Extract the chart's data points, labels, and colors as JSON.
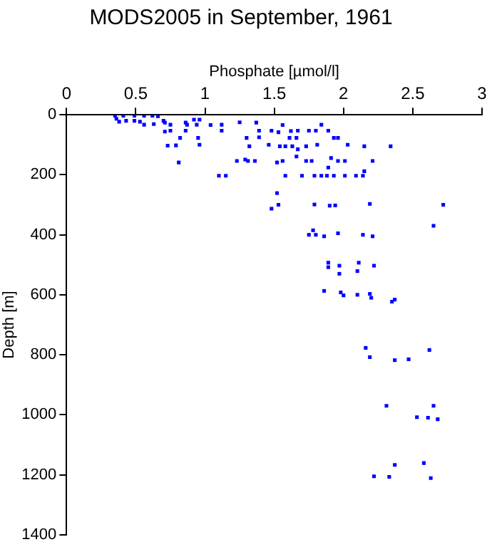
{
  "chart_data": {
    "type": "scatter",
    "title": "MODS2005 in September, 1961",
    "xlabel": "Phosphate [µmol/l]",
    "ylabel": "Depth [m]",
    "xlim": [
      0,
      3
    ],
    "xticks": [
      0,
      0.5,
      1,
      1.5,
      2,
      2.5,
      3
    ],
    "ylim": [
      1400,
      0
    ],
    "yticks": [
      0,
      200,
      400,
      600,
      800,
      1000,
      1200,
      1400
    ],
    "grid": false,
    "marker": "square",
    "series": [
      {
        "color": "#0000ff",
        "x": [
          0.35,
          0.41,
          0.49,
          0.56,
          0.62,
          0.66,
          0.36,
          0.43,
          0.49,
          0.53,
          0.38,
          0.7,
          0.56,
          0.63,
          0.75,
          0.71,
          0.86,
          0.92,
          0.96,
          0.87,
          0.94,
          1.04,
          1.12,
          1.25,
          1.37,
          0.71,
          0.75,
          0.86,
          1.12,
          0.82,
          0.95,
          1.3,
          1.39,
          1.39,
          1.48,
          0.73,
          0.79,
          0.96,
          1.32,
          1.46,
          0.81,
          1.23,
          1.29,
          1.31,
          1.36,
          1.52,
          1.1,
          1.15,
          1.52,
          1.48,
          1.53,
          1.56,
          1.84,
          1.53,
          1.62,
          1.67,
          1.75,
          1.8,
          1.89,
          1.61,
          1.66,
          1.93,
          1.96,
          1.54,
          1.58,
          1.63,
          1.67,
          1.73,
          1.81,
          2.03,
          2.15,
          2.34,
          1.56,
          1.66,
          1.73,
          1.77,
          1.91,
          1.96,
          2.01,
          2.21,
          1.89,
          1.58,
          1.7,
          1.79,
          1.84,
          1.88,
          1.93,
          2.01,
          2.09,
          2.14,
          2.15,
          1.79,
          1.9,
          1.94,
          2.19,
          2.72,
          2.65,
          1.78,
          1.75,
          1.8,
          1.86,
          1.96,
          2.14,
          2.21,
          1.89,
          2.11,
          1.89,
          1.97,
          2.22,
          2.1,
          1.97,
          1.86,
          1.98,
          2.0,
          2.1,
          2.19,
          2.2,
          2.37,
          2.35,
          2.16,
          2.19,
          2.37,
          2.47,
          2.62,
          2.31,
          2.65,
          2.53,
          2.61,
          2.68,
          2.37,
          2.58,
          2.22,
          2.33,
          2.63
        ],
        "values": [
          3,
          3,
          3,
          3,
          3,
          5,
          13,
          20,
          20,
          23,
          23,
          20,
          33,
          31,
          33,
          26,
          26,
          16,
          16,
          33,
          33,
          34,
          33,
          25,
          26,
          56,
          53,
          53,
          53,
          77,
          77,
          77,
          75,
          53,
          53,
          103,
          102,
          100,
          105,
          100,
          159,
          154,
          149,
          154,
          154,
          159,
          203,
          203,
          261,
          313,
          300,
          34,
          33,
          58,
          54,
          53,
          53,
          53,
          53,
          77,
          77,
          77,
          77,
          105,
          105,
          105,
          115,
          105,
          100,
          100,
          105,
          105,
          154,
          139,
          154,
          154,
          144,
          154,
          154,
          154,
          176,
          203,
          203,
          203,
          203,
          203,
          203,
          203,
          203,
          203,
          188,
          299,
          303,
          302,
          297,
          300,
          370,
          385,
          400,
          400,
          405,
          395,
          400,
          405,
          493,
          493,
          508,
          503,
          503,
          521,
          530,
          587,
          592,
          602,
          600,
          597,
          610,
          616,
          623,
          777,
          808,
          818,
          815,
          784,
          970,
          970,
          1008,
          1010,
          1015,
          1167,
          1161,
          1205,
          1207,
          1211
        ]
      }
    ]
  }
}
